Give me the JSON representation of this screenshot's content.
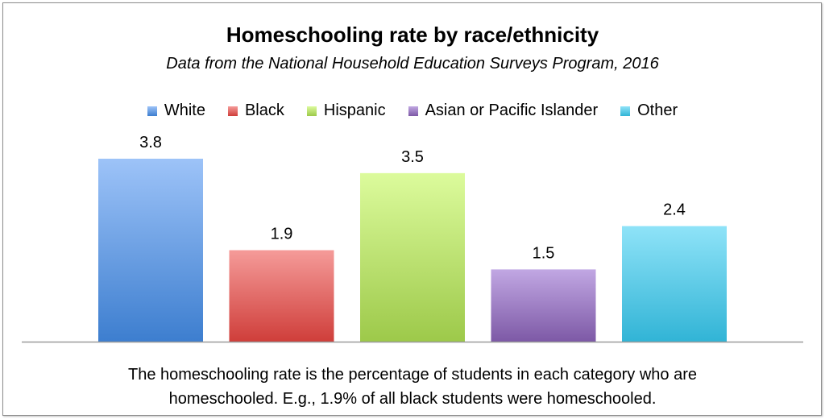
{
  "chart_data": {
    "type": "bar",
    "title": "Homeschooling rate by race/ethnicity",
    "subtitle": "Data from the National Household Education Surveys Program, 2016",
    "categories": [
      "White",
      "Black",
      "Hispanic",
      "Asian or Pacific Islander",
      "Other"
    ],
    "values": [
      3.8,
      1.9,
      3.5,
      1.5,
      2.4
    ],
    "value_labels": [
      "3.8",
      "1.9",
      "3.5",
      "1.5",
      "2.4"
    ],
    "colors": [
      {
        "top": "#9dc3f8",
        "bottom": "#3d7ecf"
      },
      {
        "top": "#f59b99",
        "bottom": "#cf3e3a"
      },
      {
        "top": "#dcfb9c",
        "bottom": "#9dc94a"
      },
      {
        "top": "#c1a7e3",
        "bottom": "#7d59a6"
      },
      {
        "top": "#8fe3f8",
        "bottom": "#31b4d6"
      }
    ],
    "xlabel": "",
    "ylabel": "",
    "ylim": [
      0,
      4
    ],
    "grid": false,
    "legend_position": "top",
    "note": [
      "The homeschooling rate is the percentage of students in each category who are",
      "homeschooled. E.g., 1.9% of all black students were homeschooled."
    ]
  }
}
